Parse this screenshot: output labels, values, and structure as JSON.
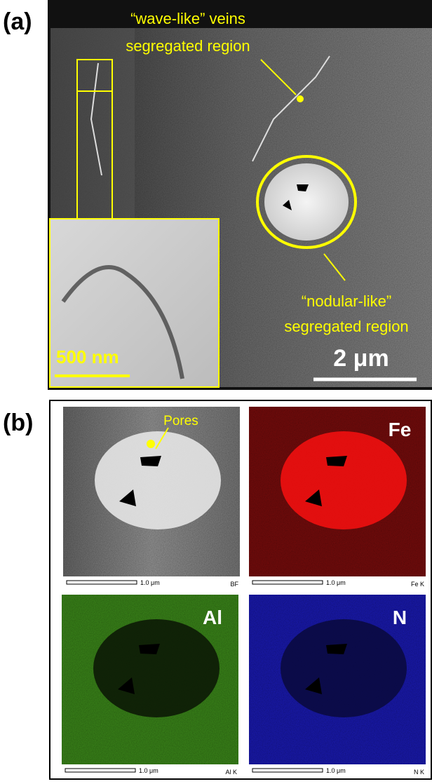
{
  "panel_a": {
    "label": "(a)",
    "wave_annotation": [
      "“wave-like” veins",
      "segregated region"
    ],
    "nodular_annotation": [
      "“nodular-like”",
      "segregated region"
    ],
    "inset_scale": "500 nm",
    "scale_bar": "2 μm"
  },
  "panel_b": {
    "label": "(b)",
    "pores": "Pores",
    "maps": [
      {
        "scale": "1.0 μm",
        "signal": "BF"
      },
      {
        "element": "Fe",
        "scale": "1.0 μm",
        "signal": "Fe K"
      },
      {
        "element": "Al",
        "scale": "1.0 μm",
        "signal": "Al K"
      },
      {
        "element": "N",
        "scale": "1.0 μm",
        "signal": "N K"
      }
    ]
  }
}
